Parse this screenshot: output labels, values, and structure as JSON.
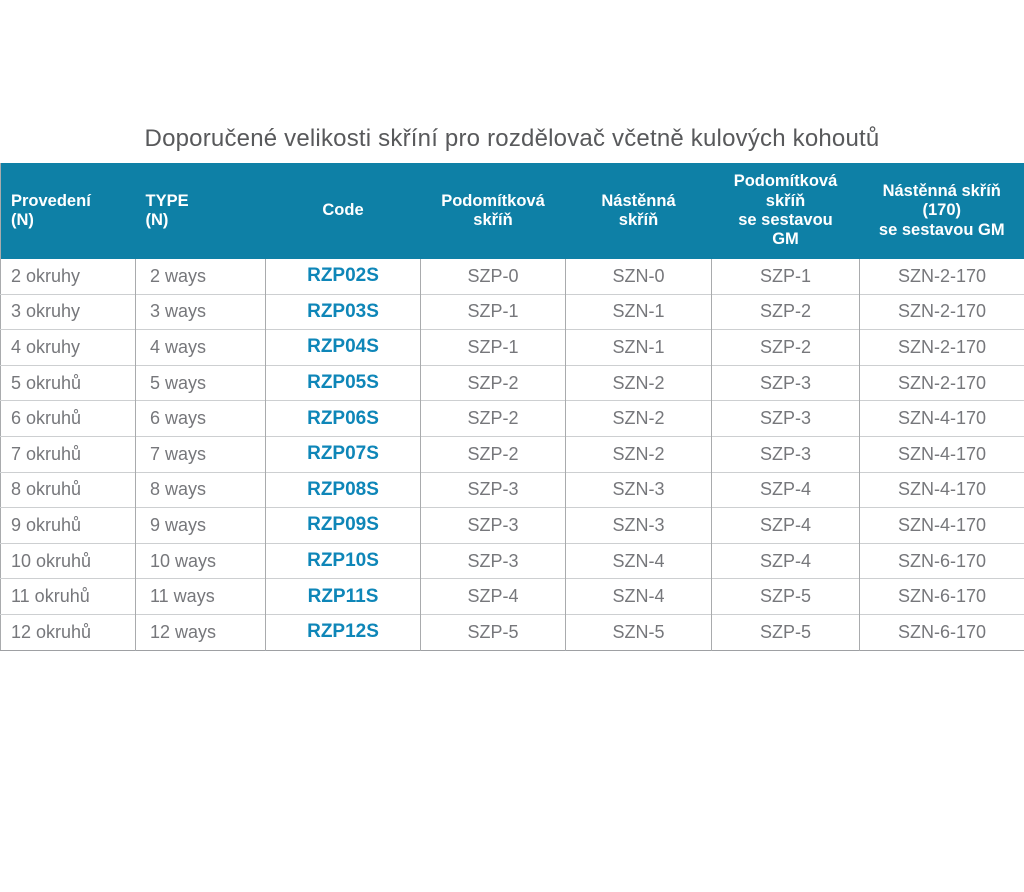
{
  "title": "Doporučené velikosti skříní pro rozdělovač včetně kulových kohoutů",
  "colors": {
    "header_bg": "#0E80A6",
    "header_text": "#FFFFFF",
    "code_text": "#0E86B8",
    "body_text": "#76777B",
    "title_text": "#58595B",
    "border_vertical": "#A9ABAD",
    "border_horizontal": "#CDCFD1"
  },
  "table": {
    "columns": [
      {
        "id": "provedeni",
        "label": "Provedení\n(N)",
        "align": "left"
      },
      {
        "id": "type",
        "label": "TYPE\n(N)",
        "align": "left"
      },
      {
        "id": "code",
        "label": "Code",
        "align": "center"
      },
      {
        "id": "podomitkova-skrin",
        "label": "Podomítková\nskříň",
        "align": "center"
      },
      {
        "id": "nastenna-skrin",
        "label": "Nástěnná\nskříň",
        "align": "center"
      },
      {
        "id": "podomitkova-skrin-se-sestavou-gm",
        "label": "Podomítková\nskříň\nse sestavou\nGM",
        "align": "center"
      },
      {
        "id": "nastenna-skrin-170-se-sestavou-gm",
        "label": "Nástěnná skříň\n(170)\nse sestavou GM",
        "align": "center"
      }
    ],
    "rows": [
      [
        "2 okruhy",
        "2 ways",
        "RZP02S",
        "SZP-0",
        "SZN-0",
        "SZP-1",
        "SZN-2-170"
      ],
      [
        "3 okruhy",
        "3 ways",
        "RZP03S",
        "SZP-1",
        "SZN-1",
        "SZP-2",
        "SZN-2-170"
      ],
      [
        "4 okruhy",
        "4 ways",
        "RZP04S",
        "SZP-1",
        "SZN-1",
        "SZP-2",
        "SZN-2-170"
      ],
      [
        "5 okruhů",
        "5 ways",
        "RZP05S",
        "SZP-2",
        "SZN-2",
        "SZP-3",
        "SZN-2-170"
      ],
      [
        "6 okruhů",
        "6 ways",
        "RZP06S",
        "SZP-2",
        "SZN-2",
        "SZP-3",
        "SZN-4-170"
      ],
      [
        "7 okruhů",
        "7 ways",
        "RZP07S",
        "SZP-2",
        "SZN-2",
        "SZP-3",
        "SZN-4-170"
      ],
      [
        "8 okruhů",
        "8 ways",
        "RZP08S",
        "SZP-3",
        "SZN-3",
        "SZP-4",
        "SZN-4-170"
      ],
      [
        "9 okruhů",
        "9 ways",
        "RZP09S",
        "SZP-3",
        "SZN-3",
        "SZP-4",
        "SZN-4-170"
      ],
      [
        "10 okruhů",
        "10 ways",
        "RZP10S",
        "SZP-3",
        "SZN-4",
        "SZP-4",
        "SZN-6-170"
      ],
      [
        "11 okruhů",
        "11 ways",
        "RZP11S",
        "SZP-4",
        "SZN-4",
        "SZP-5",
        "SZN-6-170"
      ],
      [
        "12 okruhů",
        "12 ways",
        "RZP12S",
        "SZP-5",
        "SZN-5",
        "SZP-5",
        "SZN-6-170"
      ]
    ]
  }
}
